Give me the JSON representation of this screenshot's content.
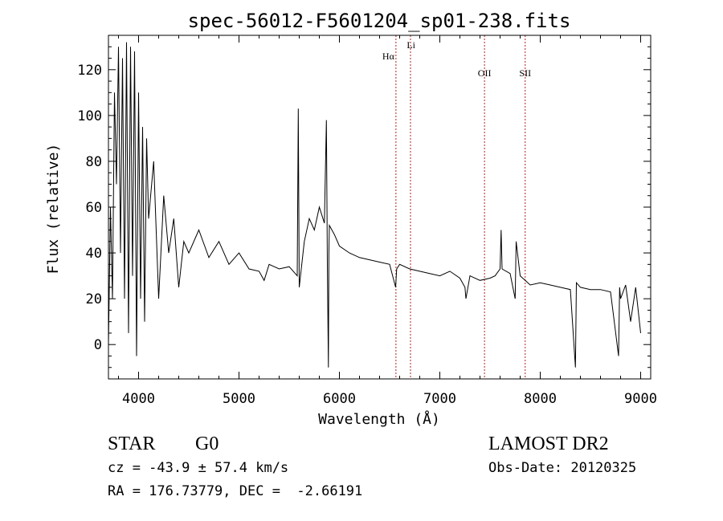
{
  "chart_data": {
    "type": "line",
    "title": "spec-56012-F5601204_sp01-238.fits",
    "xlabel": "Wavelength (Å)",
    "ylabel": "Flux (relative)",
    "xlim": [
      3700,
      9100
    ],
    "ylim": [
      -15,
      135
    ],
    "x_ticks": [
      4000,
      5000,
      6000,
      7000,
      8000,
      9000
    ],
    "y_ticks": [
      0,
      20,
      40,
      60,
      80,
      100,
      120
    ],
    "grid": false,
    "line_markers": [
      {
        "label": "Hα",
        "x": 6563
      },
      {
        "label": "Li",
        "x": 6708
      },
      {
        "label": "OII",
        "x": 7445
      },
      {
        "label": "SII",
        "x": 7850
      }
    ],
    "series": [
      {
        "x": [
          3700,
          3720,
          3740,
          3760,
          3780,
          3800,
          3820,
          3840,
          3860,
          3880,
          3900,
          3920,
          3940,
          3960,
          3980,
          4000,
          4020,
          4040,
          4060,
          4080,
          4100,
          4150,
          4200,
          4250,
          4300,
          4350,
          4400,
          4450,
          4500,
          4600,
          4700,
          4800,
          4900,
          5000,
          5100,
          5200,
          5250,
          5300,
          5400,
          5500,
          5580,
          5590,
          5600,
          5650,
          5700,
          5750,
          5800,
          5850,
          5870,
          5880,
          5890,
          5895,
          5900,
          5950,
          6000,
          6100,
          6200,
          6300,
          6400,
          6500,
          6560,
          6570,
          6600,
          6700,
          6800,
          6900,
          7000,
          7100,
          7200,
          7250,
          7260,
          7300,
          7400,
          7500,
          7550,
          7600,
          7610,
          7620,
          7700,
          7750,
          7760,
          7800,
          7850,
          7900,
          8000,
          8100,
          8200,
          8300,
          8350,
          8360,
          8400,
          8500,
          8600,
          8700,
          8780,
          8790,
          8800,
          8850,
          8900,
          8950,
          9000
        ],
        "y": [
          0,
          60,
          20,
          110,
          70,
          130,
          40,
          125,
          20,
          132,
          5,
          130,
          30,
          128,
          -5,
          110,
          20,
          95,
          10,
          90,
          55,
          80,
          20,
          65,
          40,
          55,
          25,
          45,
          40,
          50,
          38,
          45,
          35,
          40,
          33,
          32,
          28,
          35,
          33,
          34,
          30,
          103,
          25,
          45,
          55,
          50,
          60,
          53,
          98,
          35,
          -10,
          40,
          52,
          48,
          43,
          40,
          38,
          37,
          36,
          35,
          25,
          33,
          35,
          33,
          32,
          31,
          30,
          32,
          29,
          25,
          20,
          30,
          28,
          29,
          30,
          33,
          50,
          33,
          31,
          20,
          45,
          30,
          28,
          26,
          27,
          26,
          25,
          24,
          -10,
          27,
          25,
          24,
          24,
          23,
          -5,
          25,
          20,
          26,
          10,
          25,
          5
        ]
      }
    ]
  },
  "info": {
    "object_type": "STAR",
    "subclass": "G0",
    "survey": "LAMOST DR2",
    "redshift": "cz = -43.9 ± 57.4 km/s",
    "obs_date": "Obs-Date: 20120325",
    "coords": "RA = 176.73779, DEC =  -2.66191"
  }
}
